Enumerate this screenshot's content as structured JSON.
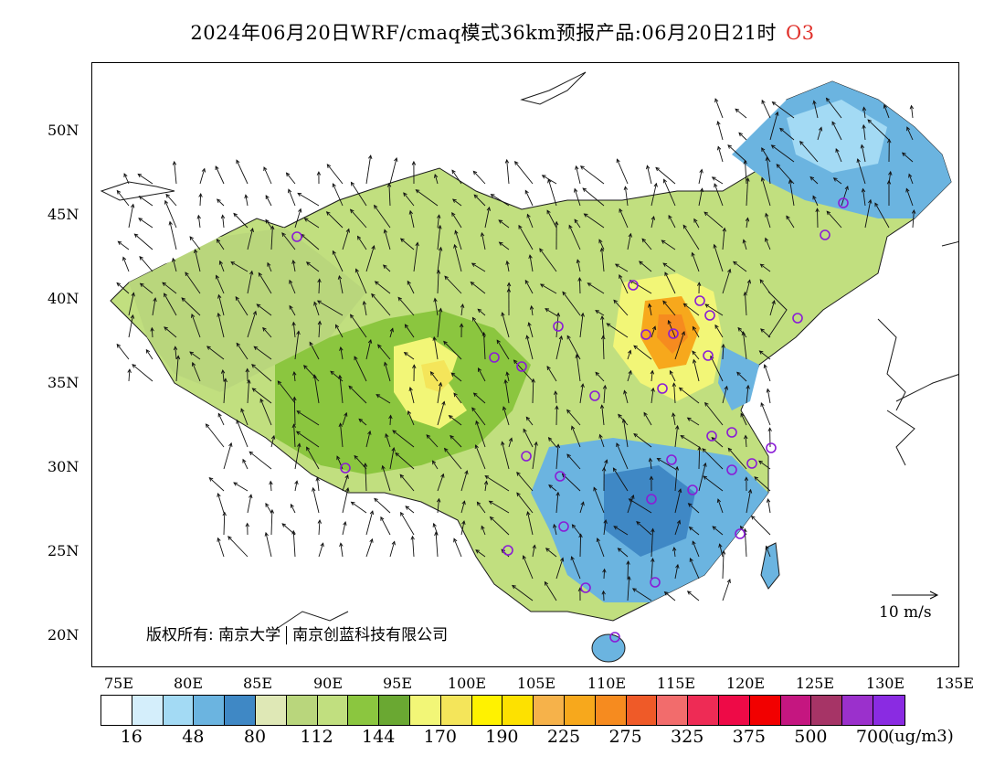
{
  "title": {
    "text": "2024年06月20日WRF/cmaq模式36km预报产品:06月20日21时",
    "species": "O3",
    "species_color": "#e0302a"
  },
  "latitude_labels": [
    "50N",
    "45N",
    "40N",
    "35N",
    "30N",
    "25N",
    "20N"
  ],
  "longitude_labels": [
    "75E",
    "80E",
    "85E",
    "90E",
    "95E",
    "100E",
    "105E",
    "110E",
    "115E",
    "120E",
    "125E",
    "130E",
    "135E"
  ],
  "copyright": {
    "text1": "版权所有: 南京大学",
    "text2": "南京创蓝科技有限公司"
  },
  "wind_reference": {
    "label": "10 m/s"
  },
  "legend": {
    "colors": [
      "#ffffff",
      "#d4eefb",
      "#a3daf4",
      "#6bb4e0",
      "#3f88c5",
      "#dfe8b6",
      "#b9d67c",
      "#c1df7f",
      "#8bc63f",
      "#6aa832",
      "#f2f677",
      "#f4e55a",
      "#fff200",
      "#fde100",
      "#f6b24a",
      "#f7a81c",
      "#f68b1f",
      "#ef5a28",
      "#f26c6c",
      "#ee2b55",
      "#ee0a47",
      "#f20000",
      "#c51680",
      "#a63466",
      "#9b30cc",
      "#8a2be2"
    ],
    "tick_labels": [
      "16",
      "48",
      "80",
      "112",
      "144",
      "170",
      "190",
      "225",
      "275",
      "325",
      "375",
      "500",
      "700"
    ],
    "unit": "(ug/m3)"
  },
  "map_features": {
    "stations": "purple-circle-markers",
    "wind_vectors": "black-arrows"
  }
}
